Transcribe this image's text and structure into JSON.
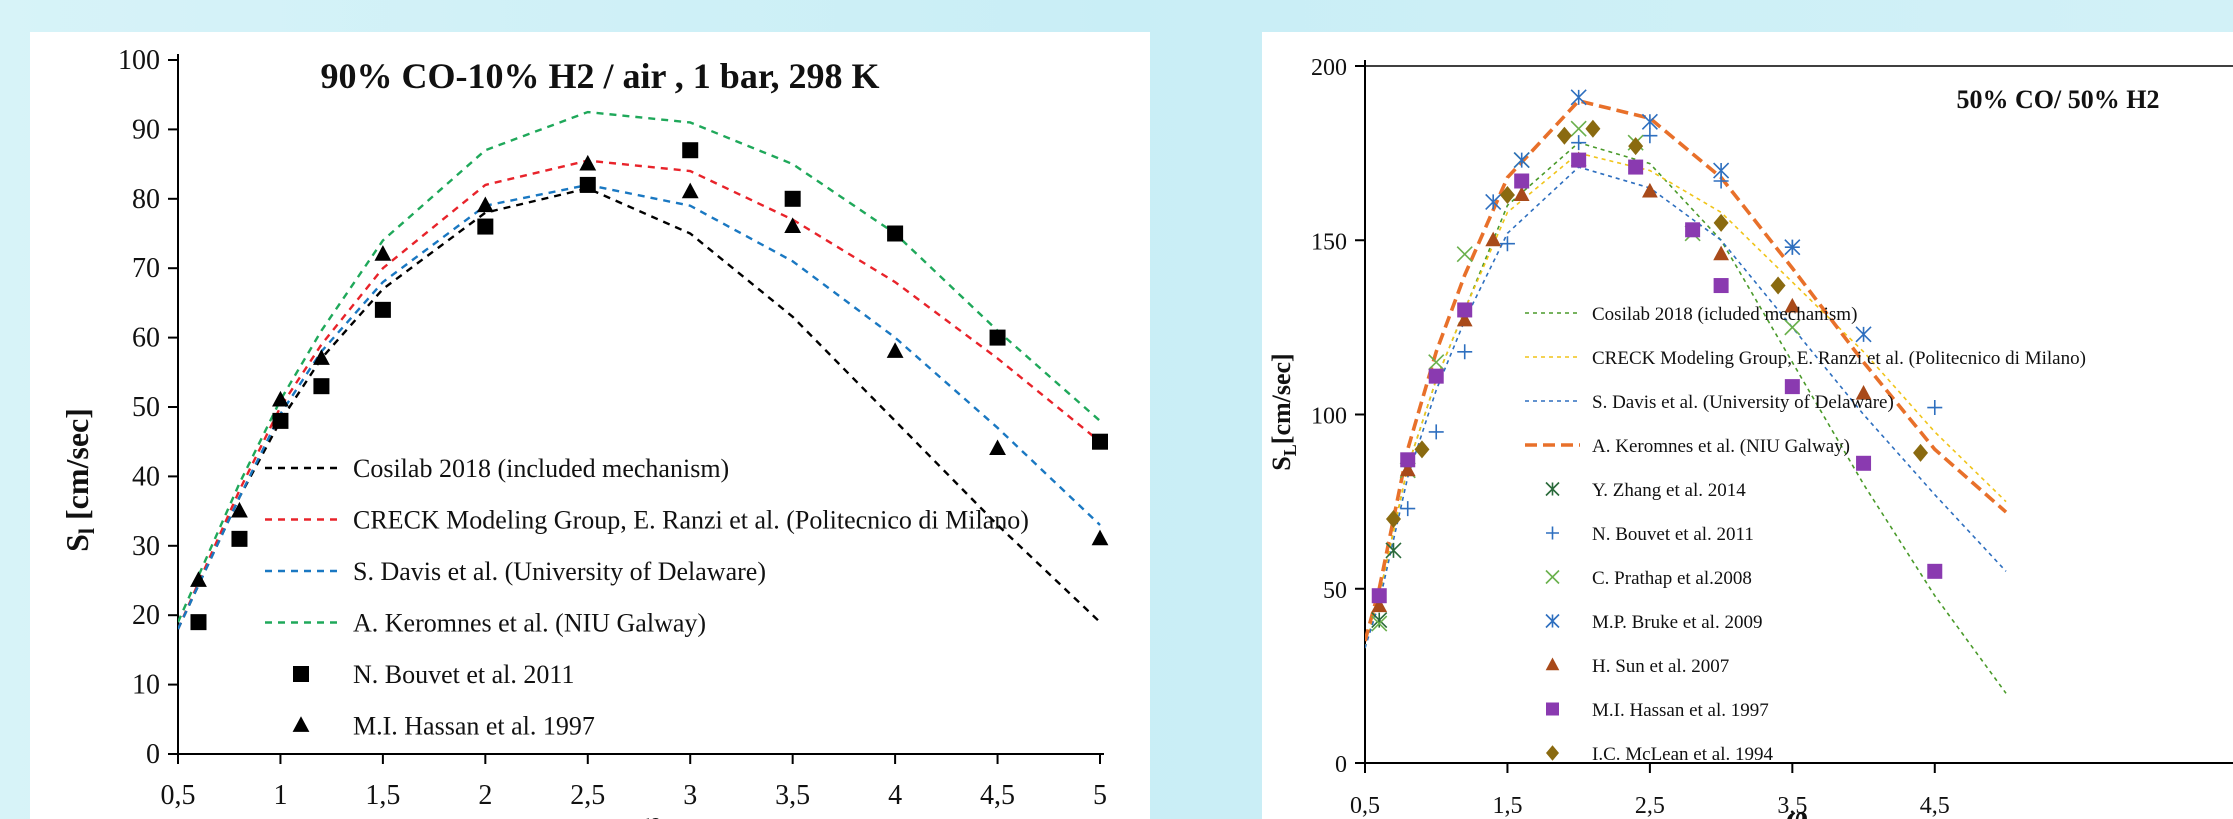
{
  "chart_data": [
    {
      "type": "line",
      "title": "90% CO-10% H2 / air , 1 bar, 298 K",
      "xlabel": "φ",
      "ylabel_main": "S",
      "ylabel_sub": "l",
      "ylabel_unit": " [cm/sec]",
      "xlim": [
        0.5,
        5
      ],
      "ylim": [
        0,
        100
      ],
      "xticks": [
        "0,5",
        "1",
        "1,5",
        "2",
        "2,5",
        "3",
        "3,5",
        "4",
        "4,5",
        "5"
      ],
      "xtick_values": [
        0.5,
        1,
        1.5,
        2,
        2.5,
        3,
        3.5,
        4,
        4.5,
        5
      ],
      "yticks": [
        "0",
        "10",
        "20",
        "30",
        "40",
        "50",
        "60",
        "70",
        "80",
        "90",
        "100"
      ],
      "ytick_values": [
        0,
        10,
        20,
        30,
        40,
        50,
        60,
        70,
        80,
        90,
        100
      ],
      "legend_position": "bottom-left",
      "series": [
        {
          "name": "Cosilab 2018 (included mechanism)",
          "kind": "line",
          "color": "#000000",
          "x": [
            0.5,
            0.8,
            1,
            1.2,
            1.5,
            2,
            2.5,
            3,
            3.5,
            4,
            4.5,
            5
          ],
          "y": [
            18,
            37,
            48,
            57,
            67,
            78,
            81.5,
            75,
            63,
            48,
            33,
            19
          ]
        },
        {
          "name": "CRECK Modeling Group, E. Ranzi et al. (Politecnico di Milano)",
          "kind": "line",
          "color": "#e8232a",
          "x": [
            0.5,
            0.8,
            1,
            1.2,
            1.5,
            2,
            2.5,
            3,
            3.5,
            4,
            4.5,
            5
          ],
          "y": [
            18,
            38,
            50,
            59,
            70,
            82,
            85.5,
            84,
            77,
            68,
            57,
            45
          ]
        },
        {
          "name": "S. Davis et al. (University of Delaware)",
          "kind": "line",
          "color": "#1a78c2",
          "x": [
            0.5,
            0.8,
            1,
            1.2,
            1.5,
            2,
            2.5,
            3,
            3.5,
            4,
            4.5,
            5
          ],
          "y": [
            18,
            37,
            49,
            58,
            68,
            79,
            82,
            79,
            71,
            60,
            47,
            33
          ]
        },
        {
          "name": "A. Keromnes et al. (NIU Galway)",
          "kind": "line",
          "color": "#1fa85a",
          "x": [
            0.5,
            0.8,
            1,
            1.2,
            1.5,
            2,
            2.5,
            3,
            3.5,
            4,
            4.5,
            5
          ],
          "y": [
            19,
            39,
            51,
            61,
            74,
            87,
            92.5,
            91,
            85,
            75,
            61,
            48
          ]
        },
        {
          "name": "N. Bouvet et al. 2011",
          "kind": "square",
          "color": "#000000",
          "x": [
            0.6,
            0.8,
            1,
            1.2,
            1.5,
            2,
            2.5,
            3,
            3.5,
            4,
            4.5,
            5
          ],
          "y": [
            19,
            31,
            48,
            53,
            64,
            76,
            82,
            87,
            80,
            75,
            60,
            45
          ]
        },
        {
          "name": "M.I. Hassan et al. 1997",
          "kind": "triangle",
          "color": "#000000",
          "x": [
            0.6,
            0.8,
            1,
            1.2,
            1.5,
            2,
            2.5,
            3,
            3.5,
            4,
            4.5,
            5
          ],
          "y": [
            25,
            35,
            51,
            57,
            72,
            79,
            85,
            81,
            76,
            58,
            44,
            31
          ]
        }
      ]
    },
    {
      "type": "line",
      "title": "50% CO/ 50% H2",
      "xlabel": "φ",
      "ylabel_main": "S",
      "ylabel_sub": "L",
      "ylabel_unit": "[cm/sec]",
      "xlim": [
        0.5,
        5
      ],
      "ylim": [
        0,
        200
      ],
      "xticks": [
        "0,5",
        "1,5",
        "2,5",
        "3,5",
        "4,5"
      ],
      "xtick_values": [
        0.5,
        1.5,
        2.5,
        3.5,
        4.5
      ],
      "yticks": [
        "0",
        "50",
        "100",
        "150",
        "200"
      ],
      "ytick_values": [
        0,
        50,
        100,
        150,
        200
      ],
      "legend_position": "left",
      "series": [
        {
          "name": "Cosilab 2018 (icluded mechanism)",
          "kind": "line",
          "color": "#4a9a2a",
          "dash": "4,4",
          "x": [
            0.5,
            0.6,
            0.8,
            1,
            1.2,
            1.5,
            2,
            2.5,
            3,
            3.5,
            4,
            4.5,
            5
          ],
          "y": [
            33,
            48,
            85,
            110,
            130,
            160,
            178,
            172,
            150,
            115,
            80,
            48,
            20
          ]
        },
        {
          "name": "CRECK Modeling Group, E. Ranzi et al. (Politecnico di Milano)",
          "kind": "line",
          "color": "#f0c419",
          "dash": "4,4",
          "x": [
            0.5,
            0.6,
            0.8,
            1,
            1.2,
            1.5,
            2,
            2.5,
            3,
            3.5,
            4,
            4.5,
            5
          ],
          "y": [
            33,
            48,
            85,
            110,
            130,
            158,
            175,
            170,
            158,
            138,
            118,
            95,
            75
          ]
        },
        {
          "name": "S. Davis et al. (University of Delaware)",
          "kind": "line",
          "color": "#2e6fbf",
          "dash": "4,4",
          "x": [
            0.5,
            0.6,
            0.8,
            1,
            1.2,
            1.5,
            2,
            2.5,
            3,
            3.5,
            4,
            4.5,
            5
          ],
          "y": [
            33,
            46,
            82,
            107,
            127,
            152,
            171,
            165,
            150,
            125,
            100,
            77,
            55
          ]
        },
        {
          "name": "A. Keromnes et al. (NIU Galway)",
          "kind": "line",
          "color": "#e8702a",
          "dash": "12,6",
          "x": [
            0.5,
            0.6,
            0.8,
            1,
            1.2,
            1.5,
            2,
            2.5,
            3,
            3.5,
            4,
            4.5,
            5
          ],
          "y": [
            35,
            50,
            90,
            118,
            140,
            168,
            190,
            185,
            168,
            142,
            115,
            90,
            72
          ]
        },
        {
          "name": "Y. Zhang et al. 2014",
          "kind": "asterisk",
          "color": "#2a6a3a",
          "x": [
            0.6,
            0.7
          ],
          "y": [
            41,
            61
          ]
        },
        {
          "name": "N. Bouvet et al. 2011",
          "kind": "plus",
          "color": "#2e6fbf",
          "x": [
            0.8,
            1,
            1.2,
            1.5,
            2,
            2.5,
            3,
            3.5,
            4.5
          ],
          "y": [
            73,
            95,
            118,
            149,
            178,
            180,
            167,
            148,
            102
          ]
        },
        {
          "name": "C. Prathap et al.2008",
          "kind": "x",
          "color": "#6ab04c",
          "x": [
            0.6,
            0.8,
            1,
            1.2,
            1.6,
            2,
            2.4,
            2.8,
            3.5
          ],
          "y": [
            40,
            84,
            115,
            146,
            173,
            182,
            178,
            152,
            125
          ]
        },
        {
          "name": "M.P. Bruke et al. 2009",
          "kind": "asterisk",
          "color": "#2e6fbf",
          "x": [
            1.4,
            1.6,
            2,
            2.5,
            3,
            3.5,
            4
          ],
          "y": [
            161,
            173,
            191,
            184,
            170,
            148,
            123
          ]
        },
        {
          "name": "H. Sun et al. 2007",
          "kind": "triangle",
          "color": "#a84a1a",
          "x": [
            0.6,
            0.8,
            1.2,
            1.4,
            1.6,
            2,
            2.5,
            3,
            3.5,
            4
          ],
          "y": [
            45,
            84,
            127,
            150,
            163,
            173,
            164,
            146,
            131,
            106
          ]
        },
        {
          "name": "M.I. Hassan et al. 1997",
          "kind": "square",
          "color": "#8a3ab0",
          "x": [
            0.6,
            0.8,
            1,
            1.2,
            1.6,
            2,
            2.4,
            2.8,
            3,
            3.5,
            4,
            4.5
          ],
          "y": [
            48,
            87,
            111,
            130,
            167,
            173,
            171,
            153,
            137,
            108,
            86,
            55
          ]
        },
        {
          "name": "I.C. McLean et al. 1994",
          "kind": "diamond",
          "color": "#8a6a10",
          "x": [
            0.7,
            0.9,
            1.5,
            1.9,
            2.1,
            2.4,
            3,
            3.4,
            4.4
          ],
          "y": [
            70,
            90,
            163,
            180,
            182,
            177,
            155,
            137,
            89
          ]
        }
      ]
    }
  ]
}
